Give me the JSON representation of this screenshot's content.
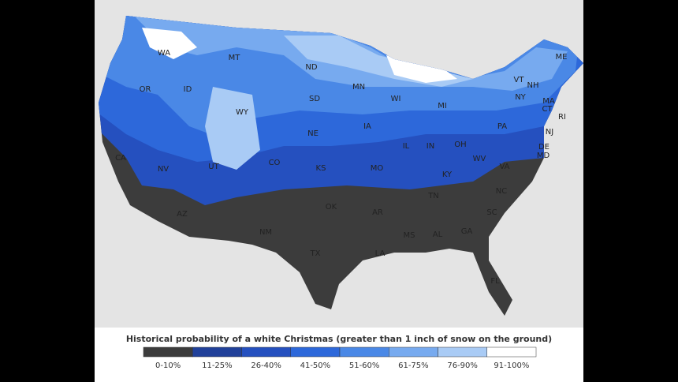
{
  "legend": {
    "title": "Historical probability of a white Christmas (greater than 1 inch of snow on the ground)",
    "items": [
      {
        "label": "0-10%",
        "color": "#3c3c3c"
      },
      {
        "label": "11-25%",
        "color": "#21419a"
      },
      {
        "label": "26-40%",
        "color": "#2550bf"
      },
      {
        "label": "41-50%",
        "color": "#2d68da"
      },
      {
        "label": "51-60%",
        "color": "#4a88e6"
      },
      {
        "label": "61-75%",
        "color": "#77aaef"
      },
      {
        "label": "76-90%",
        "color": "#a9cbf5"
      },
      {
        "label": "91-100%",
        "color": "#ffffff"
      }
    ]
  },
  "states": [
    "WA",
    "MT",
    "ND",
    "MN",
    "ME",
    "VT",
    "NH",
    "OR",
    "ID",
    "SD",
    "WI",
    "MI",
    "NY",
    "MA",
    "CT",
    "RI",
    "WY",
    "IA",
    "NE",
    "PA",
    "NJ",
    "OH",
    "IL",
    "IN",
    "DE",
    "MD",
    "CA",
    "NV",
    "UT",
    "CO",
    "KS",
    "MO",
    "WV",
    "VA",
    "KY",
    "TN",
    "NC",
    "OK",
    "AR",
    "SC",
    "AZ",
    "NM",
    "MS",
    "AL",
    "GA",
    "TX",
    "LA",
    "FL"
  ]
}
